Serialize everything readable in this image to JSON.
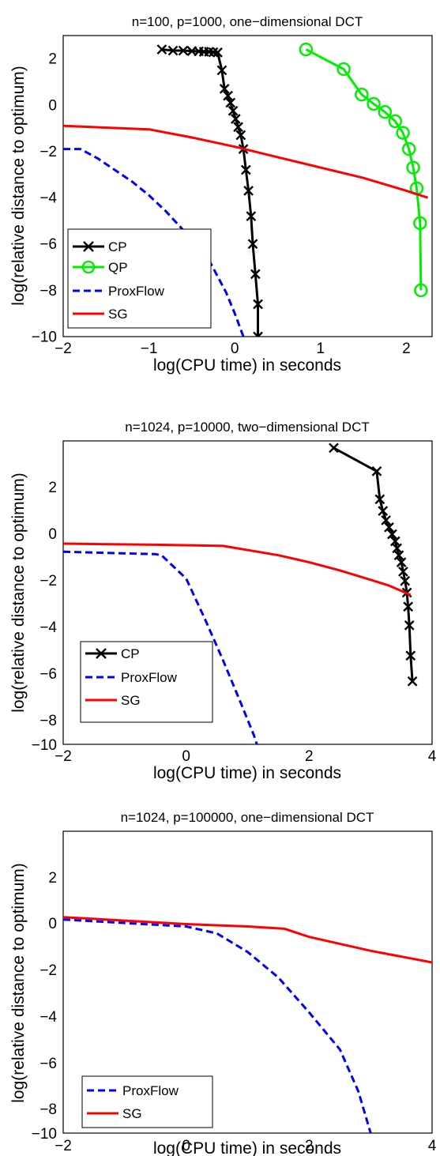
{
  "chart_data": [
    {
      "type": "line",
      "title": "n=100, p=1000, one−dimensional DCT",
      "xlabel": "log(CPU time) in seconds",
      "ylabel": "log(relative distance to optimum)",
      "xlim": [
        -2,
        2.3
      ],
      "ylim": [
        -10,
        3
      ],
      "xticks": [
        -2,
        -1,
        0,
        1,
        2
      ],
      "yticks": [
        2,
        0,
        -2,
        -4,
        -6,
        -8,
        -10
      ],
      "xtick_labels": [
        "−2",
        "−1",
        "0",
        "1",
        "2"
      ],
      "ytick_labels": [
        "2",
        "0",
        "−2",
        "−4",
        "−6",
        "−8",
        "−10"
      ],
      "grid": false,
      "legend_position": "bottom-left",
      "series": [
        {
          "name": "CP",
          "color": "#000000",
          "style": "solid",
          "marker": "x",
          "x": [
            -0.85,
            -0.72,
            -0.6,
            -0.5,
            -0.42,
            -0.36,
            -0.3,
            -0.25,
            -0.2,
            -0.15,
            -0.12,
            -0.08,
            -0.05,
            -0.02,
            0.01,
            0.04,
            0.07,
            0.1,
            0.13,
            0.16,
            0.19,
            0.21,
            0.24,
            0.27,
            0.27
          ],
          "y": [
            2.4,
            2.35,
            2.35,
            2.33,
            2.32,
            2.3,
            2.3,
            2.28,
            2.27,
            1.5,
            0.7,
            0.4,
            0.1,
            -0.25,
            -0.6,
            -0.95,
            -1.3,
            -1.9,
            -2.8,
            -3.7,
            -4.8,
            -6.0,
            -7.3,
            -8.6,
            -10
          ]
        },
        {
          "name": "QP",
          "color": "#00ee00",
          "style": "solid",
          "marker": "o",
          "x": [
            0.83,
            1.27,
            1.48,
            1.62,
            1.75,
            1.87,
            1.96,
            2.03,
            2.08,
            2.12,
            2.16,
            2.17
          ],
          "y": [
            2.4,
            1.55,
            0.45,
            0.05,
            -0.3,
            -0.7,
            -1.2,
            -1.9,
            -2.7,
            -3.6,
            -5.1,
            -8.0
          ]
        },
        {
          "name": "ProxFlow",
          "color": "#0000ff",
          "style": "dashed",
          "marker": "none",
          "x": [
            -2.0,
            -1.8,
            -1.6,
            -1.4,
            -1.2,
            -1.0,
            -0.8,
            -0.6,
            -0.4,
            -0.3,
            -0.2,
            -0.1,
            0.0,
            0.1
          ],
          "y": [
            -1.9,
            -1.9,
            -2.3,
            -2.8,
            -3.3,
            -3.9,
            -4.6,
            -5.4,
            -6.2,
            -6.7,
            -7.4,
            -8.1,
            -9.0,
            -10.0
          ]
        },
        {
          "name": "SG",
          "color": "#ff0000",
          "style": "solid",
          "marker": "none",
          "x": [
            -2.0,
            -1.0,
            -0.5,
            0.0,
            0.5,
            1.0,
            1.5,
            2.0,
            2.25
          ],
          "y": [
            -0.9,
            -1.05,
            -1.4,
            -1.8,
            -2.25,
            -2.7,
            -3.15,
            -3.7,
            -4.0
          ]
        }
      ]
    },
    {
      "type": "line",
      "title": "n=1024, p=10000, two−dimensional DCT",
      "xlabel": "log(CPU time) in seconds",
      "ylabel": "log(relative distance to optimum)",
      "xlim": [
        -2,
        4
      ],
      "ylim": [
        -10,
        3
      ],
      "xticks": [
        -2,
        0,
        2,
        4
      ],
      "yticks": [
        2,
        0,
        -2,
        -4,
        -6,
        -8,
        -10
      ],
      "xtick_labels": [
        "−2",
        "0",
        "2",
        "4"
      ],
      "ytick_labels": [
        "2",
        "0",
        "−2",
        "−4",
        "−6",
        "−8",
        "−10"
      ],
      "grid": false,
      "legend_position": "bottom-left",
      "series": [
        {
          "name": "CP",
          "color": "#000000",
          "style": "solid",
          "marker": "x",
          "x": [
            2.4,
            3.1,
            3.15,
            3.2,
            3.25,
            3.3,
            3.35,
            3.4,
            3.43,
            3.46,
            3.5,
            3.53,
            3.56,
            3.59,
            3.61,
            3.63,
            3.65
          ],
          "y": [
            2.7,
            1.7,
            0.5,
            0.0,
            -0.4,
            -0.7,
            -1.0,
            -1.3,
            -1.6,
            -1.9,
            -2.2,
            -2.6,
            -3.0,
            -3.5,
            -4.1,
            -4.9,
            -6.2
          ],
          "extra_point": [
            3.68,
            -7.3
          ]
        },
        {
          "name": "ProxFlow",
          "color": "#0000ff",
          "style": "dashed",
          "marker": "none",
          "x": [
            -2.0,
            -0.5,
            -0.4,
            0.0,
            0.3,
            0.6,
            0.9,
            1.1,
            1.15
          ],
          "y": [
            -1.75,
            -1.85,
            -1.9,
            -2.9,
            -4.6,
            -6.4,
            -8.3,
            -9.6,
            -10.0
          ]
        },
        {
          "name": "SG",
          "color": "#ff0000",
          "style": "solid",
          "marker": "none",
          "x": [
            -2.0,
            -0.5,
            0.6,
            1.5,
            2.0,
            2.5,
            3.0,
            3.3,
            3.65
          ],
          "y": [
            -1.4,
            -1.45,
            -1.5,
            -1.9,
            -2.2,
            -2.55,
            -2.95,
            -3.2,
            -3.6
          ]
        }
      ]
    },
    {
      "type": "line",
      "title": "n=1024, p=100000, one−dimensional DCT",
      "xlabel": "log(CPU time) in seconds",
      "ylabel": "log(relative distance to optimum)",
      "xlim": [
        -2,
        4
      ],
      "ylim": [
        -10,
        3
      ],
      "xticks": [
        -2,
        0,
        2,
        4
      ],
      "yticks": [
        2,
        0,
        -2,
        -4,
        -6,
        -8,
        -10
      ],
      "xtick_labels": [
        "−2",
        "0",
        "2",
        "4"
      ],
      "ytick_labels": [
        "2",
        "0",
        "−2",
        "−4",
        "−6",
        "−8",
        "−10"
      ],
      "grid": false,
      "legend_position": "bottom-left",
      "series": [
        {
          "name": "ProxFlow",
          "color": "#0000ff",
          "style": "dashed",
          "marker": "none",
          "x": [
            -2.0,
            -1.0,
            0.0,
            0.5,
            1.0,
            1.5,
            2.0,
            2.5,
            2.8,
            3.0
          ],
          "y": [
            -0.8,
            -0.95,
            -1.1,
            -1.4,
            -2.2,
            -3.3,
            -4.8,
            -6.4,
            -8.2,
            -10.0
          ]
        },
        {
          "name": "SG",
          "color": "#ff0000",
          "style": "solid",
          "marker": "none",
          "x": [
            -2.0,
            -1.0,
            0.0,
            1.0,
            1.6,
            2.0,
            3.0,
            4.0
          ],
          "y": [
            -0.7,
            -0.85,
            -1.0,
            -1.1,
            -1.2,
            -1.55,
            -2.15,
            -2.65
          ]
        }
      ]
    }
  ]
}
